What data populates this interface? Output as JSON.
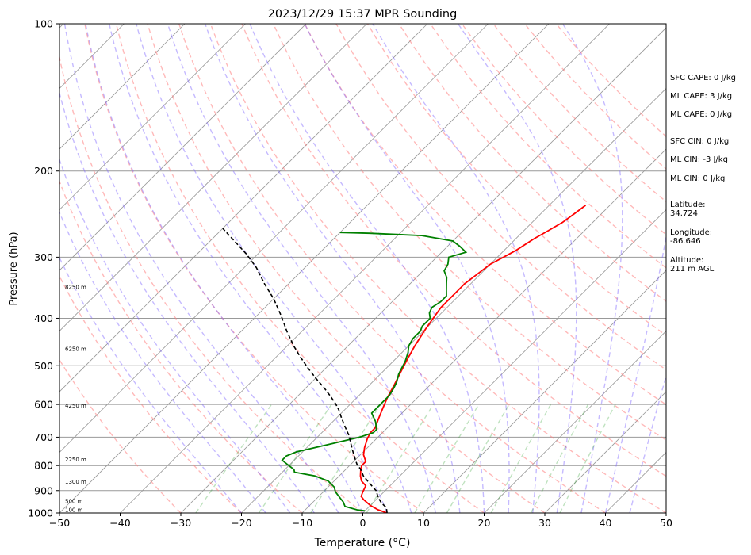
{
  "chart_data": {
    "type": "skew-t sounding",
    "title": "2023/12/29 15:37 MPR Sounding",
    "xlabel": "Temperature (°C)",
    "ylabel": "Pressure (hPa)",
    "xlim": [
      -50,
      50
    ],
    "ylim": [
      1000,
      100
    ],
    "yscale": "log",
    "grid": true,
    "x_ticks": [
      "−50",
      "−40",
      "−30",
      "−20",
      "−10",
      "0",
      "10",
      "20",
      "30",
      "40",
      "50"
    ],
    "y_ticks": [
      "100",
      "200",
      "300",
      "400",
      "500",
      "600",
      "700",
      "800",
      "900",
      "1000"
    ],
    "height_labels": [
      {
        "p": 985,
        "label": "100 m"
      },
      {
        "p": 945,
        "label": "500 m"
      },
      {
        "p": 863,
        "label": "1300 m"
      },
      {
        "p": 778,
        "label": "2250 m"
      },
      {
        "p": 603,
        "label": "4250 m"
      },
      {
        "p": 462,
        "label": "6250 m"
      },
      {
        "p": 345,
        "label": "8250 m"
      }
    ],
    "series": [
      {
        "role": "temperature",
        "color": "#ff0000",
        "points": [
          [
            4,
            1000
          ],
          [
            2,
            985
          ],
          [
            0,
            965
          ],
          [
            -2,
            940
          ],
          [
            -3,
            925
          ],
          [
            -3.5,
            905
          ],
          [
            -4,
            880
          ],
          [
            -5.5,
            860
          ],
          [
            -6.5,
            840
          ],
          [
            -7.5,
            815
          ],
          [
            -8,
            800
          ],
          [
            -8,
            785
          ],
          [
            -9.5,
            760
          ],
          [
            -10.5,
            735
          ],
          [
            -11.5,
            705
          ],
          [
            -12,
            685
          ],
          [
            -12,
            670
          ],
          [
            -13,
            640
          ],
          [
            -14,
            610
          ],
          [
            -15,
            580
          ],
          [
            -16,
            545
          ],
          [
            -17,
            515
          ],
          [
            -18,
            485
          ],
          [
            -19,
            455
          ],
          [
            -20,
            420
          ],
          [
            -20.5,
            400
          ],
          [
            -21,
            380
          ],
          [
            -21,
            360
          ],
          [
            -21,
            340
          ],
          [
            -20.5,
            325
          ],
          [
            -20,
            310
          ],
          [
            -19,
            300
          ],
          [
            -18,
            290
          ],
          [
            -17,
            275
          ],
          [
            -16,
            265
          ],
          [
            -15,
            255
          ],
          [
            -14.5,
            245
          ],
          [
            -14,
            235
          ]
        ]
      },
      {
        "role": "dewpoint",
        "color": "#008000",
        "points": [
          [
            0,
            990
          ],
          [
            -1.5,
            985
          ],
          [
            -4,
            970
          ],
          [
            -4.5,
            960
          ],
          [
            -5,
            950
          ],
          [
            -6,
            935
          ],
          [
            -7,
            920
          ],
          [
            -8,
            905
          ],
          [
            -9,
            885
          ],
          [
            -11,
            860
          ],
          [
            -14,
            840
          ],
          [
            -18,
            825
          ],
          [
            -18.5,
            815
          ],
          [
            -19.5,
            805
          ],
          [
            -21,
            790
          ],
          [
            -22,
            780
          ],
          [
            -22,
            765
          ],
          [
            -21,
            750
          ],
          [
            -17,
            725
          ],
          [
            -13,
            700
          ],
          [
            -11.5,
            685
          ],
          [
            -11.5,
            675
          ],
          [
            -13,
            650
          ],
          [
            -15,
            625
          ],
          [
            -15,
            600
          ],
          [
            -15,
            575
          ],
          [
            -15.5,
            555
          ],
          [
            -16,
            540
          ],
          [
            -17,
            520
          ],
          [
            -17.5,
            505
          ],
          [
            -18,
            490
          ],
          [
            -19,
            470
          ],
          [
            -20,
            455
          ],
          [
            -20.5,
            440
          ],
          [
            -20.5,
            425
          ],
          [
            -21,
            415
          ],
          [
            -21,
            400
          ],
          [
            -22,
            390
          ],
          [
            -22.5,
            380
          ],
          [
            -22,
            370
          ],
          [
            -22,
            360
          ],
          [
            -23,
            350
          ],
          [
            -24,
            340
          ],
          [
            -25,
            330
          ],
          [
            -26.5,
            320
          ],
          [
            -27,
            310
          ],
          [
            -28,
            300
          ],
          [
            -26,
            293
          ],
          [
            -28,
            285
          ],
          [
            -30,
            278
          ],
          [
            -36,
            271
          ],
          [
            -45,
            268
          ],
          [
            -50,
            267
          ]
        ]
      },
      {
        "role": "parcel",
        "color": "#000000",
        "points": [
          [
            4,
            1000
          ],
          [
            3,
            975
          ],
          [
            1.5,
            955
          ],
          [
            0,
            930
          ],
          [
            -1.5,
            900
          ],
          [
            -3,
            880
          ],
          [
            -4.5,
            860
          ],
          [
            -6,
            840
          ],
          [
            -7.5,
            815
          ],
          [
            -9,
            795
          ],
          [
            -10.5,
            770
          ],
          [
            -12,
            745
          ],
          [
            -13.5,
            720
          ],
          [
            -15,
            695
          ],
          [
            -16.5,
            675
          ],
          [
            -18,
            655
          ],
          [
            -19.5,
            635
          ],
          [
            -21,
            615
          ],
          [
            -22.5,
            598
          ],
          [
            -24.5,
            578
          ],
          [
            -27,
            555
          ],
          [
            -30,
            530
          ],
          [
            -33,
            505
          ],
          [
            -36,
            480
          ],
          [
            -39,
            455
          ],
          [
            -42.5,
            425
          ],
          [
            -46,
            395
          ],
          [
            -50,
            365
          ],
          [
            -54,
            340
          ],
          [
            -58,
            315
          ],
          [
            -62,
            295
          ],
          [
            -66,
            278
          ],
          [
            -70,
            262
          ]
        ]
      }
    ]
  },
  "side_panel": {
    "sfc_cape": "SFC CAPE: 0 J/kg",
    "ml_cape_1": "ML CAPE: 3 J/kg",
    "ml_cape_2": "ML CAPE: 0 J/kg",
    "sfc_cin": "SFC CIN: 0 J/kg",
    "ml_cin_1": "ML CIN: -3 J/kg",
    "ml_cin_2": "ML CIN: 0 J/kg",
    "latitude_label": "Latitude:",
    "latitude_value": "34.724",
    "longitude_label": "Longitude:",
    "longitude_value": "-86.646",
    "altitude_label": "Altitude:",
    "altitude_value": "211 m AGL"
  },
  "colors": {
    "temperature": "#ff0000",
    "dewpoint": "#008000",
    "parcel": "#000000",
    "dry_adiabat": "#ff8080",
    "moist_adiabat": "#7f66ff",
    "mixing_ratio": "#2ca02c",
    "isotherm": "#999999"
  }
}
